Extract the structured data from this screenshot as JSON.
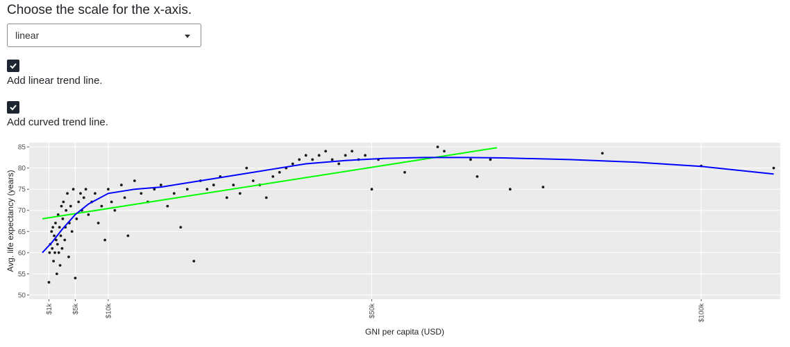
{
  "controls": {
    "scale_prompt": "Choose the scale for the x-axis.",
    "scale_selected": "linear",
    "linear_trend": {
      "label": "Add linear trend line.",
      "checked": true
    },
    "curved_trend": {
      "label": "Add curved trend line.",
      "checked": true
    }
  },
  "colors": {
    "linear_trend": "#00ff00",
    "curved_trend": "#0000ff",
    "points": "#1a1a1a",
    "panel": "#ebebeb"
  },
  "chart_data": {
    "type": "scatter",
    "xlabel": "GNI per capita (USD)",
    "ylabel": "Avg. life expectancy (years)",
    "xlim": [
      -2000,
      112000
    ],
    "ylim": [
      49,
      86
    ],
    "x_ticks": [
      1000,
      5000,
      10000,
      50000,
      100000
    ],
    "x_tick_labels": [
      "$1k",
      "$5k",
      "$10k",
      "$50k",
      "$100k"
    ],
    "y_ticks": [
      50,
      55,
      60,
      65,
      70,
      75,
      80,
      85
    ],
    "y_tick_labels": [
      "50",
      "55",
      "60",
      "65",
      "70",
      "75",
      "80",
      "85"
    ],
    "points": [
      [
        1000,
        53
      ],
      [
        1100,
        60
      ],
      [
        1200,
        62
      ],
      [
        1400,
        65
      ],
      [
        1500,
        61
      ],
      [
        1600,
        66
      ],
      [
        1700,
        58
      ],
      [
        1800,
        64
      ],
      [
        1900,
        60
      ],
      [
        2000,
        67
      ],
      [
        2100,
        63
      ],
      [
        2200,
        55
      ],
      [
        2300,
        62
      ],
      [
        2400,
        69
      ],
      [
        2500,
        60
      ],
      [
        2600,
        66
      ],
      [
        2700,
        57
      ],
      [
        2800,
        64
      ],
      [
        2900,
        71
      ],
      [
        3000,
        61
      ],
      [
        3100,
        68
      ],
      [
        3200,
        72
      ],
      [
        3400,
        63
      ],
      [
        3500,
        66
      ],
      [
        3600,
        70
      ],
      [
        3800,
        74
      ],
      [
        4000,
        59
      ],
      [
        4100,
        67
      ],
      [
        4300,
        71
      ],
      [
        4500,
        65
      ],
      [
        4700,
        75
      ],
      [
        5000,
        54
      ],
      [
        5200,
        68
      ],
      [
        5500,
        72
      ],
      [
        5800,
        74
      ],
      [
        6000,
        70
      ],
      [
        6300,
        73
      ],
      [
        6600,
        75
      ],
      [
        7000,
        69
      ],
      [
        7500,
        72
      ],
      [
        8000,
        74
      ],
      [
        8500,
        67
      ],
      [
        9000,
        71
      ],
      [
        9500,
        63
      ],
      [
        10000,
        75
      ],
      [
        10500,
        72
      ],
      [
        11000,
        70
      ],
      [
        12000,
        76
      ],
      [
        12500,
        73
      ],
      [
        13000,
        64
      ],
      [
        14000,
        77
      ],
      [
        15000,
        74
      ],
      [
        16000,
        72
      ],
      [
        17000,
        75
      ],
      [
        18000,
        76
      ],
      [
        19000,
        71
      ],
      [
        20000,
        74
      ],
      [
        21000,
        66
      ],
      [
        22000,
        75
      ],
      [
        23000,
        58
      ],
      [
        24000,
        77
      ],
      [
        25000,
        75
      ],
      [
        26000,
        76
      ],
      [
        27000,
        78
      ],
      [
        28000,
        73
      ],
      [
        29000,
        76
      ],
      [
        30000,
        74
      ],
      [
        31000,
        80
      ],
      [
        32000,
        77
      ],
      [
        33000,
        76
      ],
      [
        34000,
        73
      ],
      [
        35000,
        78
      ],
      [
        36000,
        79
      ],
      [
        37000,
        80
      ],
      [
        38000,
        81
      ],
      [
        39000,
        82
      ],
      [
        40000,
        83
      ],
      [
        41000,
        82
      ],
      [
        42000,
        83
      ],
      [
        43000,
        84
      ],
      [
        44000,
        82
      ],
      [
        45000,
        81
      ],
      [
        46000,
        83
      ],
      [
        47000,
        84
      ],
      [
        48000,
        82
      ],
      [
        49000,
        83
      ],
      [
        50000,
        75
      ],
      [
        51000,
        82
      ],
      [
        55000,
        79
      ],
      [
        60000,
        85
      ],
      [
        61000,
        84
      ],
      [
        65000,
        82
      ],
      [
        66000,
        78
      ],
      [
        68000,
        82
      ],
      [
        71000,
        75
      ],
      [
        76000,
        75.5
      ],
      [
        85000,
        83.5
      ],
      [
        100000,
        80.5
      ],
      [
        111000,
        80
      ]
    ],
    "linear_trend": [
      [
        0,
        68
      ],
      [
        69000,
        84.8
      ]
    ],
    "curved_trend": [
      [
        0,
        60
      ],
      [
        1500,
        62.5
      ],
      [
        3000,
        65.5
      ],
      [
        5000,
        69
      ],
      [
        7000,
        71.5
      ],
      [
        10000,
        74
      ],
      [
        14000,
        75
      ],
      [
        18000,
        75.5
      ],
      [
        22000,
        76.5
      ],
      [
        28000,
        78
      ],
      [
        34000,
        79.5
      ],
      [
        40000,
        81
      ],
      [
        46000,
        81.8
      ],
      [
        52000,
        82.3
      ],
      [
        58000,
        82.5
      ],
      [
        64000,
        82.5
      ],
      [
        70000,
        82.4
      ],
      [
        80000,
        82
      ],
      [
        90000,
        81.4
      ],
      [
        100000,
        80.4
      ],
      [
        111000,
        78.6
      ]
    ]
  }
}
